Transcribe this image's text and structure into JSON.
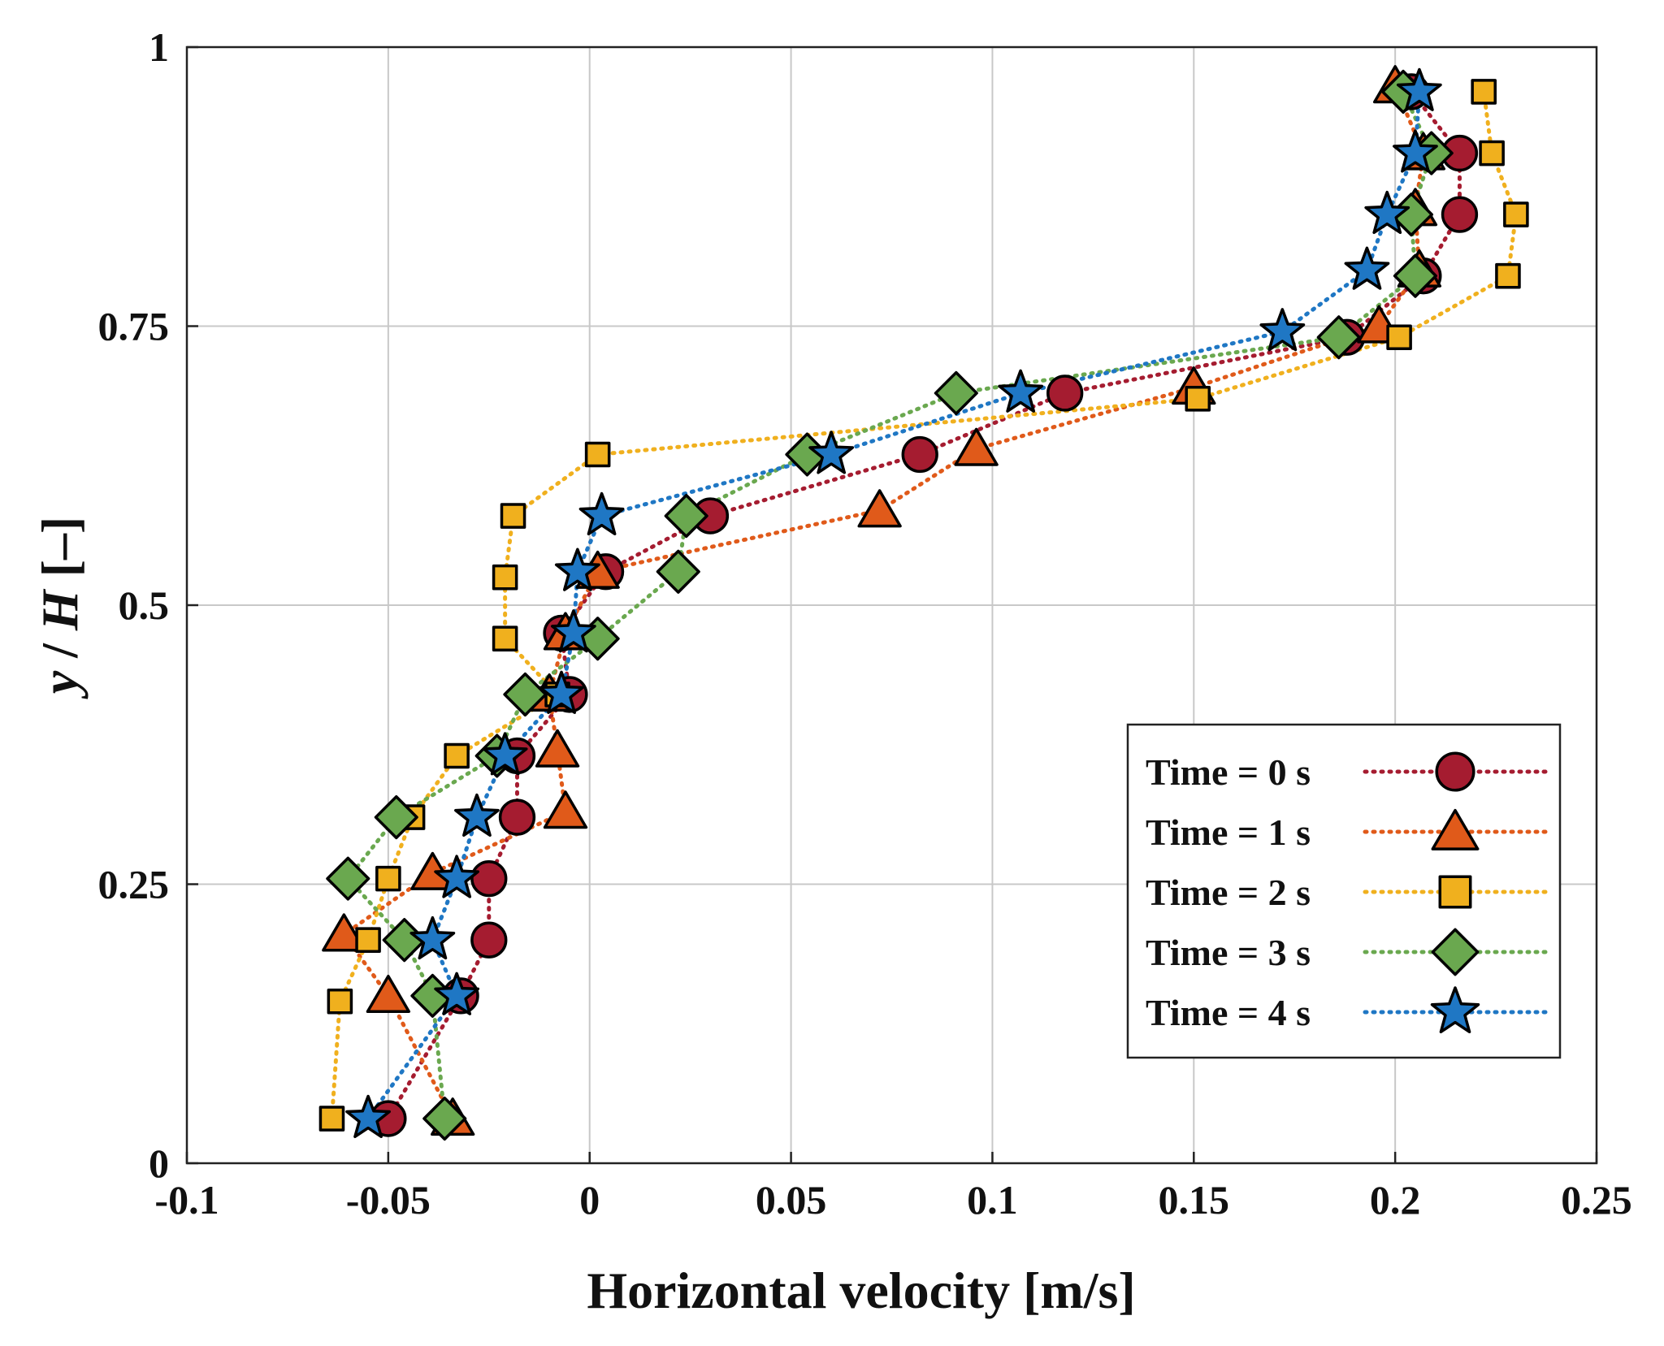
{
  "chart_data": {
    "type": "scatter",
    "title": "",
    "xlabel": "Horizontal velocity [m/s]",
    "ylabel": "y / H [–]",
    "ylabel_parts": {
      "var1": "y",
      "sep": " / ",
      "var2": "H",
      "unit": " [–]"
    },
    "xlim": [
      -0.1,
      0.25
    ],
    "ylim": [
      0,
      1
    ],
    "x_ticks": [
      -0.1,
      -0.05,
      0,
      0.05,
      0.1,
      0.15,
      0.2,
      0.25
    ],
    "x_tick_labels": [
      "-0.1",
      "-0.05",
      "0",
      "0.05",
      "0.1",
      "0.15",
      "0.2",
      "0.25"
    ],
    "y_ticks": [
      0,
      0.25,
      0.5,
      0.75,
      1
    ],
    "y_tick_labels": [
      "0",
      "0.25",
      "0.5",
      "0.75",
      "1"
    ],
    "grid": true,
    "legend_position": "bottom-right",
    "line_style": "dotted",
    "series": [
      {
        "name": "Time = 0 s",
        "marker": "circle",
        "color": "#a51c30",
        "points": [
          [
            -0.05,
            0.04
          ],
          [
            -0.032,
            0.15
          ],
          [
            -0.025,
            0.2
          ],
          [
            -0.025,
            0.255
          ],
          [
            -0.018,
            0.31
          ],
          [
            -0.018,
            0.365
          ],
          [
            -0.005,
            0.42
          ],
          [
            -0.007,
            0.475
          ],
          [
            0.004,
            0.53
          ],
          [
            0.03,
            0.58
          ],
          [
            0.082,
            0.635
          ],
          [
            0.118,
            0.69
          ],
          [
            0.188,
            0.74
          ],
          [
            0.207,
            0.795
          ],
          [
            0.216,
            0.85
          ],
          [
            0.216,
            0.905
          ],
          [
            0.204,
            0.96
          ]
        ]
      },
      {
        "name": "Time = 1 s",
        "marker": "triangle",
        "color": "#e05a1a",
        "points": [
          [
            -0.034,
            0.04
          ],
          [
            -0.05,
            0.15
          ],
          [
            -0.061,
            0.205
          ],
          [
            -0.039,
            0.26
          ],
          [
            -0.006,
            0.315
          ],
          [
            -0.008,
            0.37
          ],
          [
            -0.01,
            0.42
          ],
          [
            -0.006,
            0.475
          ],
          [
            0.002,
            0.53
          ],
          [
            0.072,
            0.585
          ],
          [
            0.096,
            0.64
          ],
          [
            0.15,
            0.695
          ],
          [
            0.196,
            0.75
          ],
          [
            0.206,
            0.8
          ],
          [
            0.205,
            0.855
          ],
          [
            0.207,
            0.905
          ],
          [
            0.2,
            0.965
          ]
        ]
      },
      {
        "name": "Time = 2 s",
        "marker": "square",
        "color": "#f0b01e",
        "points": [
          [
            -0.064,
            0.04
          ],
          [
            -0.062,
            0.145
          ],
          [
            -0.055,
            0.2
          ],
          [
            -0.05,
            0.255
          ],
          [
            -0.044,
            0.31
          ],
          [
            -0.033,
            0.365
          ],
          [
            -0.008,
            0.42
          ],
          [
            -0.021,
            0.47
          ],
          [
            -0.021,
            0.525
          ],
          [
            -0.019,
            0.58
          ],
          [
            0.002,
            0.635
          ],
          [
            0.151,
            0.685
          ],
          [
            0.201,
            0.74
          ],
          [
            0.228,
            0.795
          ],
          [
            0.23,
            0.85
          ],
          [
            0.224,
            0.905
          ],
          [
            0.222,
            0.96
          ]
        ]
      },
      {
        "name": "Time = 3 s",
        "marker": "diamond",
        "color": "#6aa84f",
        "points": [
          [
            -0.036,
            0.04
          ],
          [
            -0.039,
            0.15
          ],
          [
            -0.046,
            0.2
          ],
          [
            -0.06,
            0.255
          ],
          [
            -0.048,
            0.31
          ],
          [
            -0.023,
            0.365
          ],
          [
            -0.016,
            0.42
          ],
          [
            0.002,
            0.47
          ],
          [
            0.022,
            0.53
          ],
          [
            0.024,
            0.58
          ],
          [
            0.054,
            0.635
          ],
          [
            0.091,
            0.69
          ],
          [
            0.186,
            0.74
          ],
          [
            0.205,
            0.795
          ],
          [
            0.204,
            0.85
          ],
          [
            0.209,
            0.905
          ],
          [
            0.202,
            0.96
          ]
        ]
      },
      {
        "name": "Time = 4 s",
        "marker": "star",
        "color": "#1f77c4",
        "points": [
          [
            -0.055,
            0.04
          ],
          [
            -0.033,
            0.15
          ],
          [
            -0.039,
            0.2
          ],
          [
            -0.033,
            0.255
          ],
          [
            -0.028,
            0.31
          ],
          [
            -0.021,
            0.365
          ],
          [
            -0.007,
            0.42
          ],
          [
            -0.004,
            0.475
          ],
          [
            -0.003,
            0.53
          ],
          [
            0.003,
            0.58
          ],
          [
            0.06,
            0.635
          ],
          [
            0.107,
            0.69
          ],
          [
            0.172,
            0.745
          ],
          [
            0.193,
            0.8
          ],
          [
            0.198,
            0.85
          ],
          [
            0.205,
            0.905
          ],
          [
            0.206,
            0.96
          ]
        ]
      }
    ]
  }
}
